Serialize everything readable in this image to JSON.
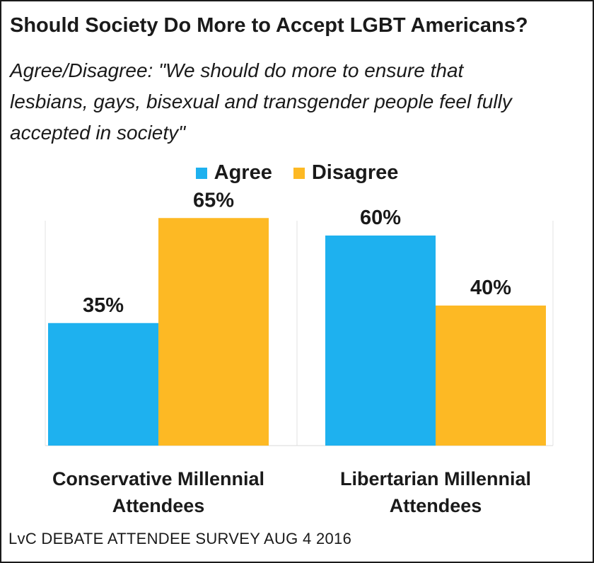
{
  "chart_data": {
    "type": "bar",
    "title": "Should Society Do More to Accept LGBT Americans?",
    "subtitle_lines": [
      "Agree/Disagree: \"We should do more to ensure that",
      "lesbians, gays, bisexual and transgender people feel fully",
      "accepted in society\""
    ],
    "categories": [
      [
        "Conservative Millennial",
        "Attendees"
      ],
      [
        "Libertarian Millennial",
        "Attendees"
      ]
    ],
    "series": [
      {
        "name": "Agree",
        "color": "#1EB1EF",
        "values": [
          35,
          60
        ],
        "labels": [
          "35%",
          "60%"
        ]
      },
      {
        "name": "Disagree",
        "color": "#FDB924",
        "values": [
          65,
          40
        ],
        "labels": [
          "65%",
          "40%"
        ]
      }
    ],
    "ylim": [
      0,
      100
    ],
    "legend_position": "top-center",
    "grid": false,
    "source": "LvC DEBATE ATTENDEE SURVEY AUG 4 2016"
  }
}
